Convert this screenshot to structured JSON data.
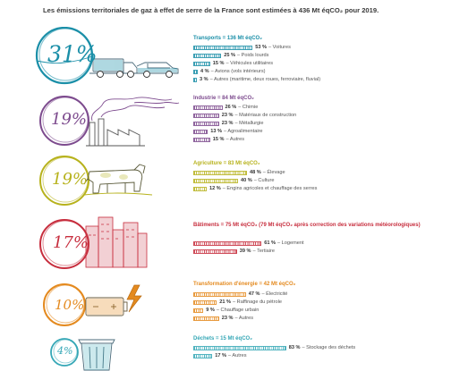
{
  "title": "Les émissions territoriales de gaz à effet de serre de la France sont estimées à 436 Mt éqCO₂ pour 2019.",
  "sections": [
    {
      "percent": "31%",
      "title": "Transports = 136 Mt éqCO₂",
      "color": "#1b8fa8",
      "rows": [
        {
          "pct": "53 %",
          "label": "– Voitures",
          "value": 53
        },
        {
          "pct": "25 %",
          "label": "– Poids lourds",
          "value": 25
        },
        {
          "pct": "15 %",
          "label": "– Véhicules utilitaires",
          "value": 15
        },
        {
          "pct": "4 %",
          "label": "– Avions (vols intérieurs)",
          "value": 4
        },
        {
          "pct": "3 %",
          "label": "– Autres (maritime, deux roues, ferroviaire, fluvial)",
          "value": 3
        }
      ]
    },
    {
      "percent": "19%",
      "title": "Industrie = 84 Mt éqCO₂",
      "color": "#7d4b8e",
      "rows": [
        {
          "pct": "26 %",
          "label": "– Chimie",
          "value": 26
        },
        {
          "pct": "23 %",
          "label": "– Matériaux de construction",
          "value": 23
        },
        {
          "pct": "23 %",
          "label": "– Métallurgie",
          "value": 23
        },
        {
          "pct": "13 %",
          "label": "– Agroalimentaire",
          "value": 13
        },
        {
          "pct": "15 %",
          "label": "– Autres",
          "value": 15
        }
      ]
    },
    {
      "percent": "19%",
      "title": "Agriculture = 83 Mt éqCO₂",
      "color": "#b7b21c",
      "rows": [
        {
          "pct": "48 %",
          "label": "– Élevage",
          "value": 48
        },
        {
          "pct": "40 %",
          "label": "– Culture",
          "value": 40
        },
        {
          "pct": "12 %",
          "label": "– Engins agricoles et chauffage des serres",
          "value": 12
        }
      ]
    },
    {
      "percent": "17%",
      "title": "Bâtiments = 75 Mt éqCO₂ (79 Mt éqCO₂ après correction des variations météorologiques)",
      "color": "#c72e3e",
      "rows": [
        {
          "pct": "61 %",
          "label": "– Logement",
          "value": 61
        },
        {
          "pct": "39 %",
          "label": "– Tertiaire",
          "value": 39
        }
      ]
    },
    {
      "percent": "10%",
      "title": "Transformation d'énergie = 42 Mt éqCO₂",
      "color": "#e48a1f",
      "rows": [
        {
          "pct": "47 %",
          "label": "– Électricité",
          "value": 47
        },
        {
          "pct": "21 %",
          "label": "– Raffinage du pétrole",
          "value": 21
        },
        {
          "pct": "9 %",
          "label": "– Chauffage urbain",
          "value": 9
        },
        {
          "pct": "23 %",
          "label": "– Autres",
          "value": 23
        }
      ]
    },
    {
      "percent": "4%",
      "title": "Déchets = 15 Mt éqCO₂",
      "color": "#35a7b6",
      "rows": [
        {
          "pct": "83 %",
          "label": "– Stockage des déchets",
          "value": 83
        },
        {
          "pct": "17 %",
          "label": "– Autres",
          "value": 17
        }
      ]
    }
  ]
}
